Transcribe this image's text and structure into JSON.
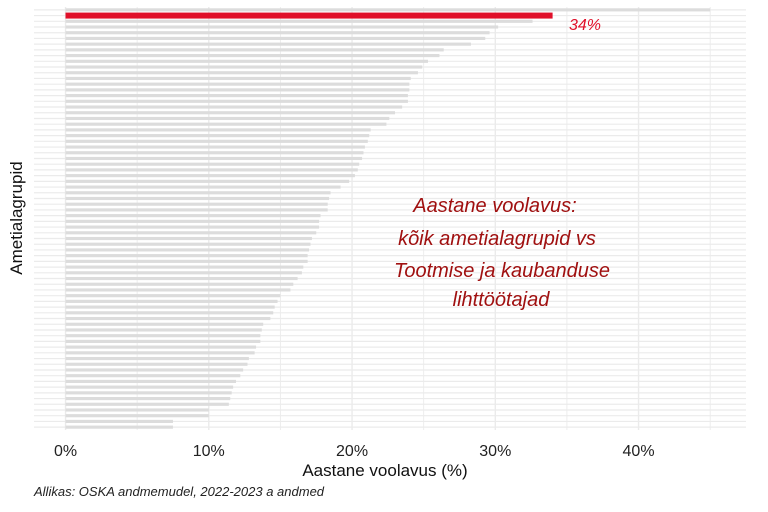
{
  "chart_data": {
    "type": "bar",
    "orientation": "horizontal",
    "xlabel": "Aastane voolavus (%)",
    "ylabel": "Ametialagrupid",
    "x_ticks": [
      "0%",
      "10%",
      "20%",
      "30%",
      "40%"
    ],
    "xlim": [
      -2.2,
      47.5
    ],
    "grid": true,
    "values": [
      45.0,
      34.0,
      32.6,
      30.2,
      29.6,
      29.3,
      28.3,
      26.4,
      26.1,
      25.3,
      24.9,
      24.6,
      24.1,
      24.0,
      24.0,
      23.9,
      23.9,
      23.5,
      23.0,
      22.6,
      22.4,
      21.3,
      21.2,
      21.1,
      20.9,
      20.8,
      20.7,
      20.5,
      20.4,
      20.2,
      19.8,
      19.2,
      18.5,
      18.4,
      18.3,
      18.3,
      17.8,
      17.7,
      17.7,
      17.5,
      17.2,
      17.1,
      17.0,
      16.9,
      16.9,
      16.6,
      16.5,
      16.2,
      15.9,
      15.7,
      15.0,
      14.8,
      14.6,
      14.5,
      14.3,
      13.8,
      13.7,
      13.6,
      13.6,
      13.3,
      13.2,
      12.8,
      12.7,
      12.4,
      12.2,
      11.9,
      11.7,
      11.6,
      11.5,
      11.4,
      10.0,
      10.0,
      7.5,
      7.5
    ],
    "highlight_index": 1,
    "highlight_label": "34%",
    "colors": {
      "bar": "#dcdcdc",
      "highlight": "#e0102a",
      "grid": "#ebebeb",
      "annotation": "#a01010"
    },
    "annotation": [
      "Aastane voolavus:",
      "kõik ametialagrupid vs",
      "Tootmise ja kaubanduse",
      "lihttöötajad"
    ],
    "source": "Allikas: OSKA andmemudel, 2022-2023 a andmed"
  }
}
